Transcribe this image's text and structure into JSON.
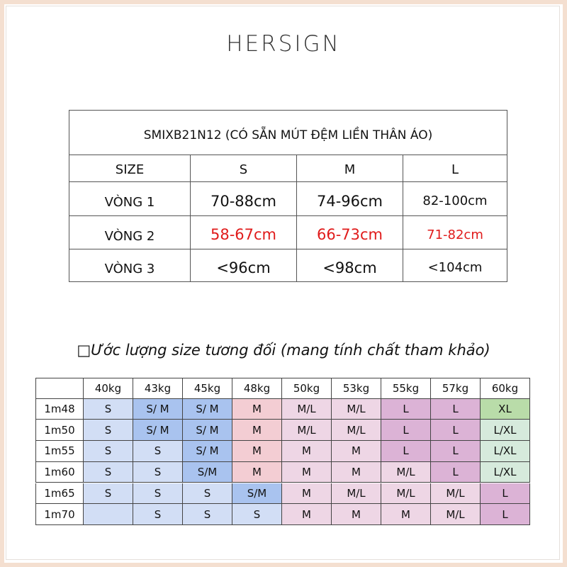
{
  "header": {
    "logo": "HERSIGN"
  },
  "size_table": {
    "title": "SMIXB21N12 (CÓ SẴN MÚT ĐỆM LIỀN THÂN ÁO)",
    "columns": [
      "SIZE",
      "S",
      "M",
      "L"
    ],
    "rows": [
      {
        "label": "VÒNG 1",
        "values": [
          "70-88cm",
          "74-96cm",
          "82-100cm"
        ],
        "color": "#111111"
      },
      {
        "label": "VÒNG 2",
        "values": [
          "58-67cm",
          "66-73cm",
          "71-82cm"
        ],
        "color": "#e01b1b"
      },
      {
        "label": "VÒNG 3",
        "values": [
          "<96cm",
          "<98cm",
          "<104cm"
        ],
        "color": "#111111"
      }
    ]
  },
  "estimate_heading": "□Ước lượng size tương đối (mang tính chất tham khảo)",
  "estimate_table": {
    "weights": [
      "40kg",
      "43kg",
      "45kg",
      "48kg",
      "50kg",
      "53kg",
      "55kg",
      "57kg",
      "60kg"
    ],
    "rows": [
      {
        "height": "1m48",
        "sizes": [
          "S",
          "S/ M",
          "S/ M",
          "M",
          "M/L",
          "M/L",
          "L",
          "L",
          "XL"
        ],
        "colors": [
          "#d2def5",
          "#a9c3ef",
          "#a9c3ef",
          "#f3cdd3",
          "#eed6e5",
          "#eed6e5",
          "#dcb3d6",
          "#dcb3d6",
          "#b9dca9"
        ]
      },
      {
        "height": "1m50",
        "sizes": [
          "S",
          "S/ M",
          "S/ M",
          "M",
          "M/L",
          "M/L",
          "L",
          "L",
          "L/XL"
        ],
        "colors": [
          "#d2def5",
          "#a9c3ef",
          "#a9c3ef",
          "#f3cdd3",
          "#eed6e5",
          "#eed6e5",
          "#dcb3d6",
          "#dcb3d6",
          "#d6eadc"
        ]
      },
      {
        "height": "1m55",
        "sizes": [
          "S",
          "S",
          "S/ M",
          "M",
          "M",
          "M",
          "L",
          "L",
          "L/XL"
        ],
        "colors": [
          "#d2def5",
          "#d2def5",
          "#a9c3ef",
          "#f3cdd3",
          "#eed6e5",
          "#eed6e5",
          "#dcb3d6",
          "#dcb3d6",
          "#d6eadc"
        ]
      },
      {
        "height": "1m60",
        "sizes": [
          "S",
          "S",
          "S/M",
          "M",
          "M",
          "M",
          "M/L",
          "L",
          "L/XL"
        ],
        "colors": [
          "#d2def5",
          "#d2def5",
          "#a9c3ef",
          "#f3cdd3",
          "#eed6e5",
          "#eed6e5",
          "#eed6e5",
          "#dcb3d6",
          "#d6eadc"
        ]
      },
      {
        "height": "1m65",
        "sizes": [
          "S",
          "S",
          "S",
          "S/M",
          "M",
          "M/L",
          "M/L",
          "M/L",
          "L"
        ],
        "colors": [
          "#d2def5",
          "#d2def5",
          "#d2def5",
          "#a9c3ef",
          "#eed6e5",
          "#eed6e5",
          "#eed6e5",
          "#eed6e5",
          "#dcb3d6"
        ]
      },
      {
        "height": "1m70",
        "sizes": [
          null,
          "S",
          "S",
          "S",
          "M",
          "M",
          "M",
          "M/L",
          "L"
        ],
        "colors": [
          "#d2def5",
          "#d2def5",
          "#d2def5",
          "#d2def5",
          "#eed6e5",
          "#eed6e5",
          "#eed6e5",
          "#eed6e5",
          "#dcb3d6"
        ]
      }
    ]
  }
}
